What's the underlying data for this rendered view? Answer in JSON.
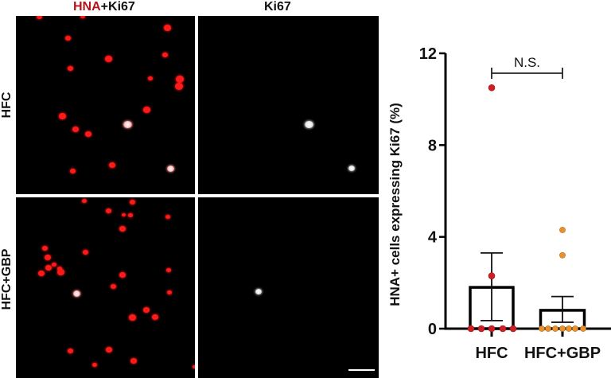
{
  "figure": {
    "column_titles": {
      "merged": {
        "highlight": "HNA",
        "rest": "+Ki67"
      },
      "single": "Ki67"
    },
    "row_labels": [
      "HFC",
      "HFC+GBP"
    ],
    "colors": {
      "hna_title": "#b3141b",
      "hfc_points": "#cc1f26",
      "hfc_gbp_points": "#e8912d",
      "panel_background": "#000000"
    },
    "panels": {
      "hfc_merged": {
        "red_cells": [
          [
            49,
            21,
            7
          ],
          [
            104,
            21,
            6
          ],
          [
            210,
            35,
            9
          ],
          [
            85,
            48,
            7
          ],
          [
            136,
            74,
            9
          ],
          [
            207,
            69,
            7
          ],
          [
            88,
            86,
            7
          ],
          [
            189,
            99,
            6
          ],
          [
            226,
            100,
            10
          ],
          [
            225,
            109,
            10
          ],
          [
            78,
            146,
            9
          ],
          [
            184,
            138,
            9
          ],
          [
            95,
            163,
            8
          ],
          [
            111,
            169,
            8
          ],
          [
            141,
            208,
            8
          ],
          [
            91,
            215,
            7
          ]
        ],
        "merged_cells": [
          [
            160,
            157,
            11
          ],
          [
            214,
            212,
            9
          ]
        ]
      },
      "hfc_ki67": {
        "white_spots": [
          [
            388,
            157,
            11
          ],
          [
            442,
            212,
            8
          ]
        ]
      },
      "hfc_gbp_merged": {
        "red_cells": [
          [
            106,
            253,
            6
          ],
          [
            166,
            254,
            7
          ],
          [
            136,
            265,
            7
          ],
          [
            155,
            270,
            5
          ],
          [
            164,
            271,
            6
          ],
          [
            211,
            273,
            6
          ],
          [
            154,
            288,
            8
          ],
          [
            56,
            312,
            7
          ],
          [
            107,
            317,
            7
          ],
          [
            60,
            324,
            8
          ],
          [
            61,
            337,
            8
          ],
          [
            68,
            333,
            6
          ],
          [
            52,
            344,
            8
          ],
          [
            76,
            342,
            9
          ],
          [
            75,
            338,
            6
          ],
          [
            154,
            346,
            8
          ],
          [
            142,
            360,
            7
          ],
          [
            212,
            340,
            6
          ],
          [
            213,
            368,
            6
          ],
          [
            184,
            390,
            8
          ],
          [
            166,
            399,
            9
          ],
          [
            195,
            399,
            8
          ],
          [
            88,
            441,
            7
          ],
          [
            137,
            440,
            8
          ],
          [
            119,
            459,
            6
          ],
          [
            168,
            454,
            8
          ],
          [
            244,
            461,
            5
          ]
        ],
        "merged_cells": [
          [
            96,
            369,
            9
          ]
        ]
      },
      "hfc_gbp_ki67": {
        "white_spots": [
          [
            325,
            367,
            8
          ]
        ]
      }
    },
    "scale_bar": true
  },
  "chart_data": {
    "type": "bar",
    "title": "",
    "xlabel": "",
    "ylabel": "HNA+ cells expressing Ki67 (%)",
    "ylim": [
      0,
      12
    ],
    "yticks": [
      0,
      4,
      8,
      12
    ],
    "categories": [
      "HFC",
      "HFC+GBP"
    ],
    "values": [
      1.8,
      0.8
    ],
    "error_upper": [
      3.3,
      1.4
    ],
    "error_lower": [
      0.35,
      0.28
    ],
    "points": {
      "HFC": [
        0,
        0,
        0,
        0,
        0,
        2.3,
        10.5
      ],
      "HFC+GBP": [
        0,
        0,
        0,
        0,
        0,
        0,
        0,
        3.2,
        4.3
      ]
    },
    "significance": {
      "label": "N.S.",
      "between": [
        "HFC",
        "HFC+GBP"
      ]
    },
    "grid": false,
    "legend": "none"
  }
}
